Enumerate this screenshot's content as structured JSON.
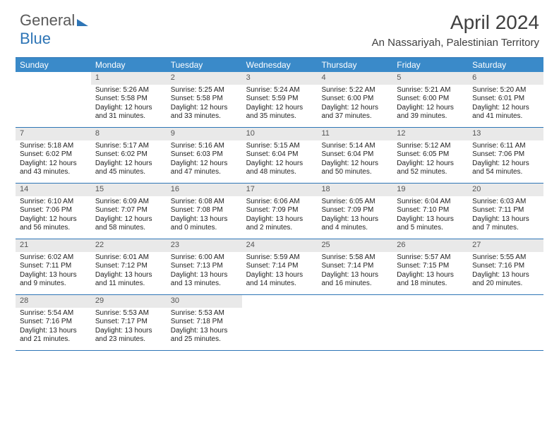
{
  "logo": {
    "part1": "General",
    "part2": "Blue"
  },
  "title": "April 2024",
  "location": "An Nassariyah, Palestinian Territory",
  "colors": {
    "header_bg": "#3a8ac9",
    "header_text": "#ffffff",
    "border": "#2e75b6",
    "daynum_bg": "#e9e9e9",
    "text": "#222222"
  },
  "dayNames": [
    "Sunday",
    "Monday",
    "Tuesday",
    "Wednesday",
    "Thursday",
    "Friday",
    "Saturday"
  ],
  "weeks": [
    [
      {
        "empty": true
      },
      {
        "n": "1",
        "sr": "Sunrise: 5:26 AM",
        "ss": "Sunset: 5:58 PM",
        "d1": "Daylight: 12 hours",
        "d2": "and 31 minutes."
      },
      {
        "n": "2",
        "sr": "Sunrise: 5:25 AM",
        "ss": "Sunset: 5:58 PM",
        "d1": "Daylight: 12 hours",
        "d2": "and 33 minutes."
      },
      {
        "n": "3",
        "sr": "Sunrise: 5:24 AM",
        "ss": "Sunset: 5:59 PM",
        "d1": "Daylight: 12 hours",
        "d2": "and 35 minutes."
      },
      {
        "n": "4",
        "sr": "Sunrise: 5:22 AM",
        "ss": "Sunset: 6:00 PM",
        "d1": "Daylight: 12 hours",
        "d2": "and 37 minutes."
      },
      {
        "n": "5",
        "sr": "Sunrise: 5:21 AM",
        "ss": "Sunset: 6:00 PM",
        "d1": "Daylight: 12 hours",
        "d2": "and 39 minutes."
      },
      {
        "n": "6",
        "sr": "Sunrise: 5:20 AM",
        "ss": "Sunset: 6:01 PM",
        "d1": "Daylight: 12 hours",
        "d2": "and 41 minutes."
      }
    ],
    [
      {
        "n": "7",
        "sr": "Sunrise: 5:18 AM",
        "ss": "Sunset: 6:02 PM",
        "d1": "Daylight: 12 hours",
        "d2": "and 43 minutes."
      },
      {
        "n": "8",
        "sr": "Sunrise: 5:17 AM",
        "ss": "Sunset: 6:02 PM",
        "d1": "Daylight: 12 hours",
        "d2": "and 45 minutes."
      },
      {
        "n": "9",
        "sr": "Sunrise: 5:16 AM",
        "ss": "Sunset: 6:03 PM",
        "d1": "Daylight: 12 hours",
        "d2": "and 47 minutes."
      },
      {
        "n": "10",
        "sr": "Sunrise: 5:15 AM",
        "ss": "Sunset: 6:04 PM",
        "d1": "Daylight: 12 hours",
        "d2": "and 48 minutes."
      },
      {
        "n": "11",
        "sr": "Sunrise: 5:14 AM",
        "ss": "Sunset: 6:04 PM",
        "d1": "Daylight: 12 hours",
        "d2": "and 50 minutes."
      },
      {
        "n": "12",
        "sr": "Sunrise: 5:12 AM",
        "ss": "Sunset: 6:05 PM",
        "d1": "Daylight: 12 hours",
        "d2": "and 52 minutes."
      },
      {
        "n": "13",
        "sr": "Sunrise: 6:11 AM",
        "ss": "Sunset: 7:06 PM",
        "d1": "Daylight: 12 hours",
        "d2": "and 54 minutes."
      }
    ],
    [
      {
        "n": "14",
        "sr": "Sunrise: 6:10 AM",
        "ss": "Sunset: 7:06 PM",
        "d1": "Daylight: 12 hours",
        "d2": "and 56 minutes."
      },
      {
        "n": "15",
        "sr": "Sunrise: 6:09 AM",
        "ss": "Sunset: 7:07 PM",
        "d1": "Daylight: 12 hours",
        "d2": "and 58 minutes."
      },
      {
        "n": "16",
        "sr": "Sunrise: 6:08 AM",
        "ss": "Sunset: 7:08 PM",
        "d1": "Daylight: 13 hours",
        "d2": "and 0 minutes."
      },
      {
        "n": "17",
        "sr": "Sunrise: 6:06 AM",
        "ss": "Sunset: 7:09 PM",
        "d1": "Daylight: 13 hours",
        "d2": "and 2 minutes."
      },
      {
        "n": "18",
        "sr": "Sunrise: 6:05 AM",
        "ss": "Sunset: 7:09 PM",
        "d1": "Daylight: 13 hours",
        "d2": "and 4 minutes."
      },
      {
        "n": "19",
        "sr": "Sunrise: 6:04 AM",
        "ss": "Sunset: 7:10 PM",
        "d1": "Daylight: 13 hours",
        "d2": "and 5 minutes."
      },
      {
        "n": "20",
        "sr": "Sunrise: 6:03 AM",
        "ss": "Sunset: 7:11 PM",
        "d1": "Daylight: 13 hours",
        "d2": "and 7 minutes."
      }
    ],
    [
      {
        "n": "21",
        "sr": "Sunrise: 6:02 AM",
        "ss": "Sunset: 7:11 PM",
        "d1": "Daylight: 13 hours",
        "d2": "and 9 minutes."
      },
      {
        "n": "22",
        "sr": "Sunrise: 6:01 AM",
        "ss": "Sunset: 7:12 PM",
        "d1": "Daylight: 13 hours",
        "d2": "and 11 minutes."
      },
      {
        "n": "23",
        "sr": "Sunrise: 6:00 AM",
        "ss": "Sunset: 7:13 PM",
        "d1": "Daylight: 13 hours",
        "d2": "and 13 minutes."
      },
      {
        "n": "24",
        "sr": "Sunrise: 5:59 AM",
        "ss": "Sunset: 7:14 PM",
        "d1": "Daylight: 13 hours",
        "d2": "and 14 minutes."
      },
      {
        "n": "25",
        "sr": "Sunrise: 5:58 AM",
        "ss": "Sunset: 7:14 PM",
        "d1": "Daylight: 13 hours",
        "d2": "and 16 minutes."
      },
      {
        "n": "26",
        "sr": "Sunrise: 5:57 AM",
        "ss": "Sunset: 7:15 PM",
        "d1": "Daylight: 13 hours",
        "d2": "and 18 minutes."
      },
      {
        "n": "27",
        "sr": "Sunrise: 5:55 AM",
        "ss": "Sunset: 7:16 PM",
        "d1": "Daylight: 13 hours",
        "d2": "and 20 minutes."
      }
    ],
    [
      {
        "n": "28",
        "sr": "Sunrise: 5:54 AM",
        "ss": "Sunset: 7:16 PM",
        "d1": "Daylight: 13 hours",
        "d2": "and 21 minutes."
      },
      {
        "n": "29",
        "sr": "Sunrise: 5:53 AM",
        "ss": "Sunset: 7:17 PM",
        "d1": "Daylight: 13 hours",
        "d2": "and 23 minutes."
      },
      {
        "n": "30",
        "sr": "Sunrise: 5:53 AM",
        "ss": "Sunset: 7:18 PM",
        "d1": "Daylight: 13 hours",
        "d2": "and 25 minutes."
      },
      {
        "empty": true
      },
      {
        "empty": true
      },
      {
        "empty": true
      },
      {
        "empty": true
      }
    ]
  ]
}
